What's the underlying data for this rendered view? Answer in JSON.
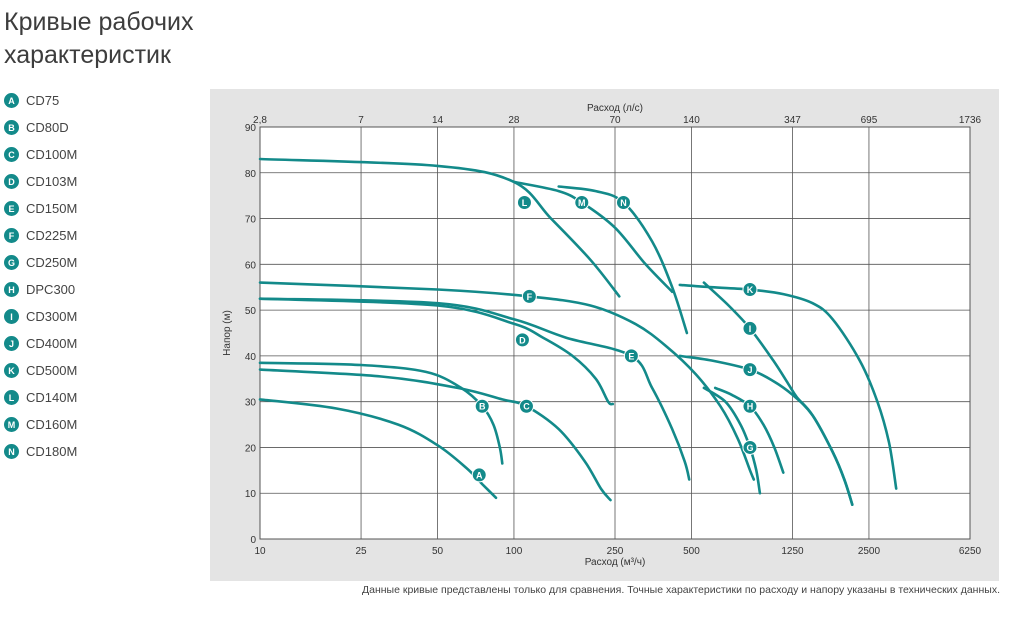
{
  "header": {
    "title_line1": "Кривые рабочих",
    "title_line2": "характеристик"
  },
  "legend": [
    {
      "key": "A",
      "name": "CD75"
    },
    {
      "key": "B",
      "name": "CD80D"
    },
    {
      "key": "C",
      "name": "CD100M"
    },
    {
      "key": "D",
      "name": "CD103M"
    },
    {
      "key": "E",
      "name": "CD150M"
    },
    {
      "key": "F",
      "name": "CD225M"
    },
    {
      "key": "G",
      "name": "CD250M"
    },
    {
      "key": "H",
      "name": "DPC300"
    },
    {
      "key": "I",
      "name": "CD300M"
    },
    {
      "key": "J",
      "name": "CD400M"
    },
    {
      "key": "K",
      "name": "CD500M"
    },
    {
      "key": "L",
      "name": "CD140M"
    },
    {
      "key": "M",
      "name": "CD160M"
    },
    {
      "key": "N",
      "name": "CD180M"
    }
  ],
  "colors": {
    "curve": "#138a8a",
    "badge": "#138a8a",
    "panel": "#e4e4e4",
    "plot": "#ffffff"
  },
  "note": "Данные кривые представлены только для сравнения. Точные характеристики по расходу и напору указаны в технических данных.",
  "chart_data": {
    "type": "line",
    "xscale": "log",
    "xlabel": "Расход (м³/ч)",
    "x2label": "Расход (л/с)",
    "ylabel": "Напор (м)",
    "xticks": [
      10,
      25,
      50,
      100,
      250,
      500,
      1250,
      2500,
      6250
    ],
    "x2ticks": [
      "2,8",
      "7",
      "14",
      "28",
      "70",
      "140",
      "347",
      "695",
      "1736"
    ],
    "yticks": [
      0,
      10,
      20,
      30,
      40,
      50,
      60,
      70,
      80,
      90
    ],
    "ylim": [
      0,
      90
    ],
    "xlim": [
      10,
      6250
    ],
    "grid": true,
    "series": [
      {
        "key": "A",
        "label_at": [
          73,
          14
        ],
        "points": [
          [
            10,
            30.5
          ],
          [
            20,
            28.5
          ],
          [
            35,
            25
          ],
          [
            50,
            20.5
          ],
          [
            65,
            15.5
          ],
          [
            75,
            12
          ],
          [
            85,
            9
          ]
        ]
      },
      {
        "key": "B",
        "label_at": [
          75,
          29
        ],
        "points": [
          [
            10,
            38.5
          ],
          [
            25,
            38
          ],
          [
            45,
            36.5
          ],
          [
            62,
            33
          ],
          [
            75,
            29
          ],
          [
            83,
            25
          ],
          [
            88,
            20
          ],
          [
            90,
            16.5
          ]
        ]
      },
      {
        "key": "C",
        "label_at": [
          112,
          29
        ],
        "points": [
          [
            10,
            37
          ],
          [
            30,
            35.5
          ],
          [
            60,
            33
          ],
          [
            90,
            30.5
          ],
          [
            112,
            29
          ],
          [
            150,
            24
          ],
          [
            190,
            17
          ],
          [
            220,
            11
          ],
          [
            240,
            8.5
          ]
        ]
      },
      {
        "key": "D",
        "label_at": [
          108,
          43.5
        ],
        "points": [
          [
            10,
            52.5
          ],
          [
            50,
            51
          ],
          [
            100,
            47
          ],
          [
            130,
            44
          ],
          [
            170,
            40
          ],
          [
            210,
            35
          ],
          [
            235,
            30
          ],
          [
            245,
            29.5
          ]
        ]
      },
      {
        "key": "E",
        "label_at": [
          290,
          40
        ],
        "points": [
          [
            10,
            52.5
          ],
          [
            50,
            51.5
          ],
          [
            100,
            48
          ],
          [
            160,
            44
          ],
          [
            290,
            40
          ],
          [
            350,
            33
          ],
          [
            420,
            24
          ],
          [
            470,
            17
          ],
          [
            490,
            13
          ]
        ]
      },
      {
        "key": "F",
        "label_at": [
          115,
          53
        ],
        "points": [
          [
            10,
            56
          ],
          [
            50,
            54.5
          ],
          [
            115,
            53
          ],
          [
            200,
            51
          ],
          [
            300,
            47
          ],
          [
            400,
            42
          ],
          [
            520,
            36
          ],
          [
            650,
            29
          ],
          [
            760,
            22
          ],
          [
            850,
            15
          ],
          [
            880,
            13
          ]
        ]
      },
      {
        "key": "G",
        "label_at": [
          850,
          20
        ],
        "points": [
          [
            560,
            33
          ],
          [
            680,
            30
          ],
          [
            780,
            25
          ],
          [
            850,
            20
          ],
          [
            900,
            15
          ],
          [
            930,
            10
          ]
        ]
      },
      {
        "key": "H",
        "label_at": [
          850,
          29
        ],
        "points": [
          [
            620,
            33
          ],
          [
            720,
            31.5
          ],
          [
            850,
            29
          ],
          [
            960,
            25
          ],
          [
            1060,
            20
          ],
          [
            1150,
            14.5
          ]
        ]
      },
      {
        "key": "I",
        "label_at": [
          850,
          46
        ],
        "points": [
          [
            560,
            56
          ],
          [
            700,
            51
          ],
          [
            850,
            46
          ],
          [
            1050,
            39
          ],
          [
            1200,
            34
          ],
          [
            1300,
            31
          ],
          [
            1500,
            27
          ],
          [
            1800,
            19
          ],
          [
            2000,
            13
          ],
          [
            2150,
            7.5
          ]
        ]
      },
      {
        "key": "J",
        "label_at": [
          850,
          37
        ],
        "points": [
          [
            450,
            40
          ],
          [
            600,
            39
          ],
          [
            850,
            37
          ],
          [
            1050,
            34.5
          ],
          [
            1250,
            31.5
          ],
          [
            1500,
            27
          ],
          [
            1800,
            19
          ],
          [
            2000,
            13
          ],
          [
            2150,
            7.5
          ]
        ]
      },
      {
        "key": "K",
        "label_at": [
          850,
          54.5
        ],
        "points": [
          [
            450,
            55.5
          ],
          [
            600,
            55
          ],
          [
            850,
            54.5
          ],
          [
            1150,
            53.5
          ],
          [
            1500,
            51.5
          ],
          [
            1800,
            48
          ],
          [
            2300,
            39
          ],
          [
            2700,
            30
          ],
          [
            3000,
            21
          ],
          [
            3200,
            11
          ]
        ]
      },
      {
        "key": "L",
        "label_at": [
          110,
          73.5
        ],
        "points": [
          [
            10,
            83
          ],
          [
            50,
            81.5
          ],
          [
            100,
            78
          ],
          [
            140,
            70
          ],
          [
            200,
            61
          ],
          [
            260,
            53
          ]
        ]
      },
      {
        "key": "M",
        "label_at": [
          185,
          73.5
        ],
        "points": [
          [
            100,
            78
          ],
          [
            150,
            76
          ],
          [
            185,
            73.5
          ],
          [
            250,
            68
          ],
          [
            330,
            60
          ],
          [
            420,
            54
          ]
        ]
      },
      {
        "key": "N",
        "label_at": [
          270,
          73.5
        ],
        "points": [
          [
            150,
            77
          ],
          [
            210,
            76
          ],
          [
            270,
            73.5
          ],
          [
            350,
            65
          ],
          [
            420,
            55
          ],
          [
            480,
            45
          ]
        ]
      }
    ]
  }
}
